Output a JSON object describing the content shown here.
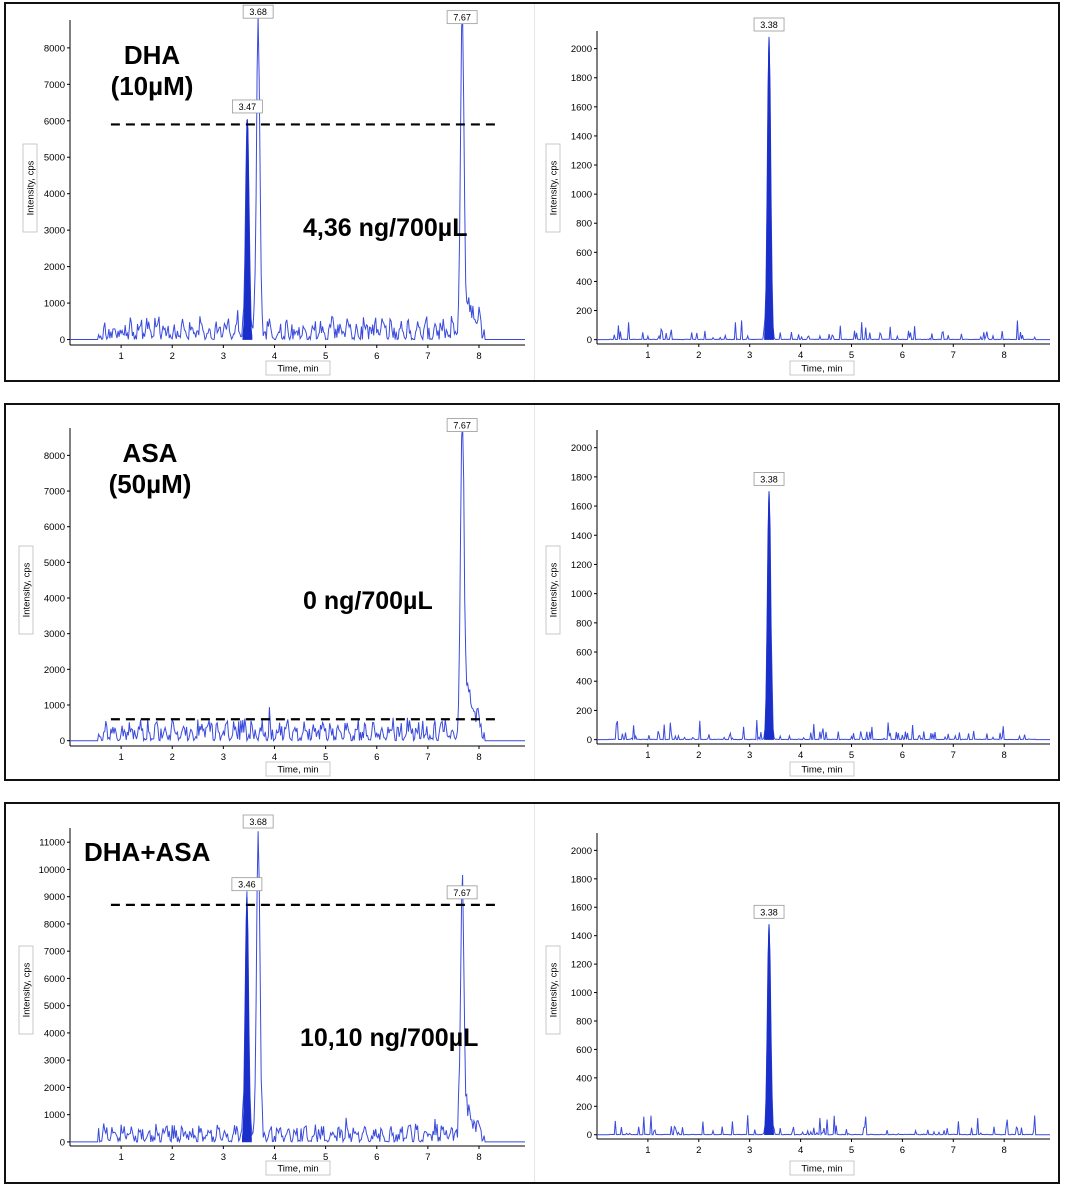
{
  "chart_data": [
    {
      "id": "p1-left",
      "type": "line",
      "annotations": [
        "DHA",
        "(10µM)",
        "4,36 ng/700µL"
      ],
      "xlabel": "Time, min",
      "ylabel": "Intensity, cps",
      "xlim": [
        0,
        8.9
      ],
      "ylim": [
        -150,
        8600
      ],
      "xticks": [
        1,
        2,
        3,
        4,
        5,
        6,
        7,
        8
      ],
      "yticks": [
        0,
        1000,
        2000,
        3000,
        4000,
        5000,
        6000,
        7000,
        8000
      ],
      "peaks": [
        {
          "x": 3.47,
          "y": 6050,
          "label": "3.47"
        },
        {
          "x": 3.68,
          "y": 8650,
          "label": "3.68"
        },
        {
          "x": 7.67,
          "y": 8500,
          "label": "7.67"
        }
      ],
      "dashed_line_y": 5900
    },
    {
      "id": "p1-right",
      "type": "line",
      "xlabel": "Time, min",
      "ylabel": "Intensity, cps",
      "xlim": [
        0,
        8.9
      ],
      "ylim": [
        -30,
        2080
      ],
      "xticks": [
        1,
        2,
        3,
        4,
        5,
        6,
        7,
        8
      ],
      "yticks": [
        0,
        200,
        400,
        600,
        800,
        1000,
        1200,
        1400,
        1600,
        1800,
        2000
      ],
      "peaks": [
        {
          "x": 3.38,
          "y": 2080,
          "label": "3.38"
        }
      ]
    },
    {
      "id": "p2-left",
      "type": "line",
      "annotations": [
        "ASA",
        "(50µM)",
        "0 ng/700µL"
      ],
      "xlabel": "Time, min",
      "ylabel": "Intensity, cps",
      "xlim": [
        0,
        8.9
      ],
      "ylim": [
        -150,
        8600
      ],
      "xticks": [
        1,
        2,
        3,
        4,
        5,
        6,
        7,
        8
      ],
      "yticks": [
        0,
        1000,
        2000,
        3000,
        4000,
        5000,
        6000,
        7000,
        8000
      ],
      "peaks": [
        {
          "x": 7.67,
          "y": 8500,
          "label": "7.67"
        }
      ],
      "dashed_line_y": 600
    },
    {
      "id": "p2-right",
      "type": "line",
      "xlabel": "Time, min",
      "ylabel": "Intensity, cps",
      "xlim": [
        0,
        8.9
      ],
      "ylim": [
        -30,
        2080
      ],
      "xticks": [
        1,
        2,
        3,
        4,
        5,
        6,
        7,
        8
      ],
      "yticks": [
        0,
        200,
        400,
        600,
        800,
        1000,
        1200,
        1400,
        1600,
        1800,
        2000
      ],
      "peaks": [
        {
          "x": 3.38,
          "y": 1700,
          "label": "3.38"
        }
      ]
    },
    {
      "id": "p3-left",
      "type": "line",
      "annotations": [
        "DHA+ASA",
        "10,10 ng/700µL"
      ],
      "xlabel": "Time, min",
      "ylabel": "Intensity, cps",
      "xlim": [
        0,
        8.9
      ],
      "ylim": [
        -150,
        11300
      ],
      "xticks": [
        1,
        2,
        3,
        4,
        5,
        6,
        7,
        8
      ],
      "yticks": [
        0,
        1000,
        2000,
        3000,
        4000,
        5000,
        6000,
        7000,
        8000,
        9000,
        10000,
        11000
      ],
      "peaks": [
        {
          "x": 3.46,
          "y": 9000,
          "label": "3.46"
        },
        {
          "x": 3.68,
          "y": 11300,
          "label": "3.68"
        },
        {
          "x": 7.67,
          "y": 8700,
          "label": "7.67"
        }
      ],
      "dashed_line_y": 8700
    },
    {
      "id": "p3-right",
      "type": "line",
      "xlabel": "Time, min",
      "ylabel": "Intensity, cps",
      "xlim": [
        0,
        8.9
      ],
      "ylim": [
        -30,
        2080
      ],
      "xticks": [
        1,
        2,
        3,
        4,
        5,
        6,
        7,
        8
      ],
      "yticks": [
        0,
        200,
        400,
        600,
        800,
        1000,
        1200,
        1400,
        1600,
        1800,
        2000
      ],
      "peaks": [
        {
          "x": 3.38,
          "y": 1480,
          "label": "3.38"
        }
      ]
    }
  ]
}
